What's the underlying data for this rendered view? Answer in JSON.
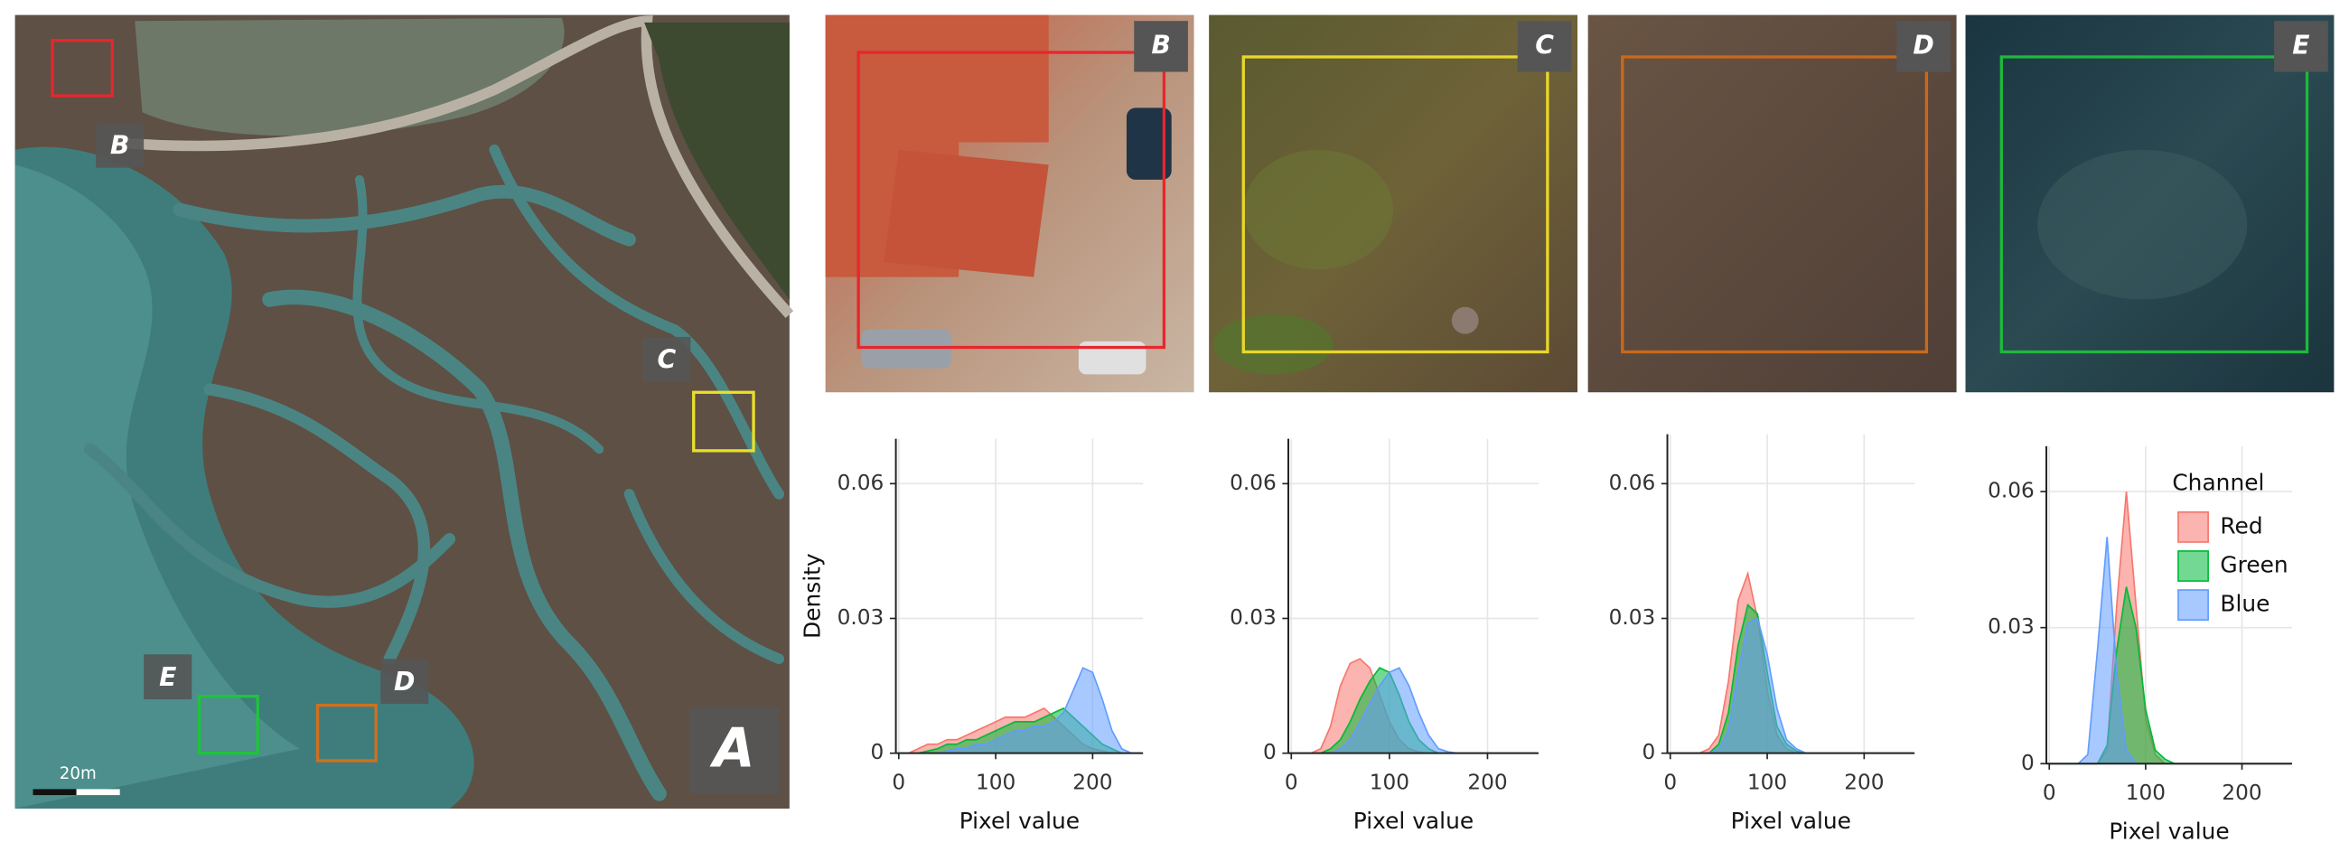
{
  "figure": {
    "map_label": "A",
    "labels": [
      "B",
      "C",
      "D",
      "E"
    ],
    "scale_bar": "20m"
  },
  "chart_data": [
    {
      "type": "area",
      "x_label": "Pixel value",
      "y_label": "Density",
      "x": [
        0,
        10,
        20,
        30,
        40,
        50,
        60,
        70,
        80,
        90,
        100,
        110,
        120,
        130,
        140,
        150,
        160,
        170,
        180,
        190,
        200,
        210,
        220,
        230,
        240,
        250
      ],
      "xlim": [
        -3,
        252
      ],
      "ylim": [
        0,
        0.07
      ],
      "xticks": [
        0,
        100,
        200
      ],
      "yticks": [
        0,
        0.03,
        0.06
      ],
      "grid": true,
      "series": [
        {
          "color": "#f8766d",
          "values": [
            0,
            0,
            0.001,
            0.002,
            0.002,
            0.003,
            0.003,
            0.004,
            0.005,
            0.006,
            0.007,
            0.008,
            0.008,
            0.008,
            0.009,
            0.01,
            0.008,
            0.006,
            0.004,
            0.002,
            0.001,
            0.0005,
            0,
            0,
            0,
            0
          ]
        },
        {
          "color": "#00ba38",
          "values": [
            0,
            0,
            0,
            0.0005,
            0.001,
            0.002,
            0.002,
            0.003,
            0.003,
            0.004,
            0.005,
            0.006,
            0.007,
            0.007,
            0.007,
            0.008,
            0.009,
            0.01,
            0.008,
            0.006,
            0.004,
            0.002,
            0.001,
            0,
            0,
            0
          ]
        },
        {
          "color": "#619cff",
          "values": [
            0,
            0,
            0,
            0,
            0,
            0.0005,
            0.001,
            0.001,
            0.002,
            0.002,
            0.003,
            0.004,
            0.005,
            0.005,
            0.006,
            0.006,
            0.007,
            0.009,
            0.014,
            0.019,
            0.018,
            0.012,
            0.005,
            0.001,
            0,
            0
          ]
        }
      ]
    },
    {
      "type": "area",
      "x_label": "Pixel value",
      "x": [
        0,
        10,
        20,
        30,
        40,
        50,
        60,
        70,
        80,
        90,
        100,
        110,
        120,
        130,
        140,
        150,
        160,
        170,
        180,
        190,
        200,
        210,
        220,
        230,
        240,
        250
      ],
      "xlim": [
        -3,
        252
      ],
      "ylim": [
        0,
        0.07
      ],
      "xticks": [
        0,
        100,
        200
      ],
      "yticks": [
        0,
        0.03,
        0.06
      ],
      "grid": true,
      "series": [
        {
          "color": "#f8766d",
          "values": [
            0,
            0,
            0,
            0.001,
            0.006,
            0.015,
            0.02,
            0.021,
            0.019,
            0.013,
            0.007,
            0.003,
            0.001,
            0.0003,
            0,
            0,
            0,
            0,
            0,
            0,
            0,
            0,
            0,
            0,
            0,
            0
          ]
        },
        {
          "color": "#00ba38",
          "values": [
            0,
            0,
            0,
            0,
            0.001,
            0.003,
            0.007,
            0.012,
            0.016,
            0.019,
            0.018,
            0.013,
            0.007,
            0.003,
            0.001,
            0,
            0,
            0,
            0,
            0,
            0,
            0,
            0,
            0,
            0,
            0
          ]
        },
        {
          "color": "#619cff",
          "values": [
            0,
            0,
            0,
            0,
            0,
            0.001,
            0.003,
            0.007,
            0.011,
            0.015,
            0.018,
            0.019,
            0.015,
            0.009,
            0.004,
            0.001,
            0.0003,
            0,
            0,
            0,
            0,
            0,
            0,
            0,
            0,
            0
          ]
        }
      ]
    },
    {
      "type": "area",
      "x_label": "Pixel value",
      "x": [
        0,
        10,
        20,
        30,
        40,
        50,
        60,
        70,
        80,
        90,
        100,
        110,
        120,
        130,
        140,
        150,
        160,
        170,
        180,
        190,
        200,
        210,
        220,
        230,
        240,
        250
      ],
      "xlim": [
        -3,
        252
      ],
      "ylim": [
        0,
        0.071
      ],
      "xticks": [
        0,
        100,
        200
      ],
      "yticks": [
        0,
        0.03,
        0.06
      ],
      "grid": true,
      "series": [
        {
          "color": "#f8766d",
          "values": [
            0,
            0,
            0,
            0,
            0.001,
            0.004,
            0.016,
            0.034,
            0.04,
            0.03,
            0.014,
            0.004,
            0.001,
            0,
            0,
            0,
            0,
            0,
            0,
            0,
            0,
            0,
            0,
            0,
            0,
            0
          ]
        },
        {
          "color": "#00ba38",
          "values": [
            0,
            0,
            0,
            0,
            0,
            0.002,
            0.009,
            0.024,
            0.033,
            0.031,
            0.018,
            0.006,
            0.002,
            0.0005,
            0,
            0,
            0,
            0,
            0,
            0,
            0,
            0,
            0,
            0,
            0,
            0
          ]
        },
        {
          "color": "#619cff",
          "values": [
            0,
            0,
            0,
            0,
            0,
            0.001,
            0.005,
            0.018,
            0.029,
            0.03,
            0.022,
            0.01,
            0.003,
            0.001,
            0,
            0,
            0,
            0,
            0,
            0,
            0,
            0,
            0,
            0,
            0,
            0
          ]
        }
      ]
    },
    {
      "type": "area",
      "x_label": "Pixel value",
      "legend": "right",
      "legend_title": "Channel",
      "x": [
        0,
        10,
        20,
        30,
        40,
        50,
        60,
        70,
        80,
        90,
        100,
        110,
        120,
        130,
        140,
        150,
        160,
        170,
        180,
        190,
        200,
        210,
        220,
        230,
        240,
        250
      ],
      "xlim": [
        -3,
        252
      ],
      "ylim": [
        0,
        0.07
      ],
      "xticks": [
        0,
        100,
        200
      ],
      "yticks": [
        0,
        0.03,
        0.06
      ],
      "grid": true,
      "series": [
        {
          "name": "Red",
          "color": "#f8766d",
          "values": [
            0,
            0,
            0,
            0,
            0,
            0,
            0.003,
            0.035,
            0.06,
            0.035,
            0.01,
            0.002,
            0,
            0,
            0,
            0,
            0,
            0,
            0,
            0,
            0,
            0,
            0,
            0,
            0,
            0
          ]
        },
        {
          "name": "Green",
          "color": "#00ba38",
          "values": [
            0,
            0,
            0,
            0,
            0,
            0,
            0.004,
            0.025,
            0.039,
            0.03,
            0.012,
            0.003,
            0.001,
            0,
            0,
            0,
            0,
            0,
            0,
            0,
            0,
            0,
            0,
            0,
            0,
            0
          ]
        },
        {
          "name": "Blue",
          "color": "#619cff",
          "values": [
            0,
            0,
            0,
            0,
            0.002,
            0.025,
            0.05,
            0.02,
            0.003,
            0,
            0,
            0,
            0,
            0,
            0,
            0,
            0,
            0,
            0,
            0,
            0,
            0,
            0,
            0,
            0,
            0
          ]
        }
      ]
    }
  ]
}
